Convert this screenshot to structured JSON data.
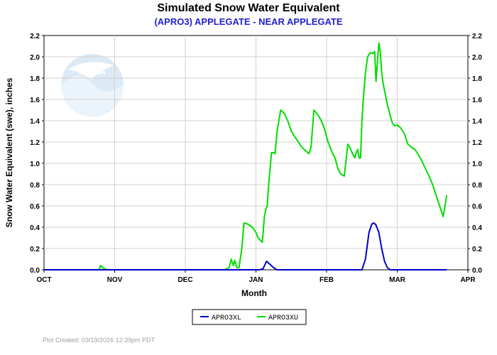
{
  "chart_data": {
    "type": "line",
    "title": "Simulated Snow Water Equivalent",
    "subtitle": "(APRO3) APPLEGATE - NEAR APPLEGATE",
    "xlabel": "Month",
    "ylabel": "Snow Water Equivalent (swe),  inches",
    "ylim": [
      0,
      2.2
    ],
    "xlim": [
      0,
      6
    ],
    "x_ticks": [
      {
        "x": 0,
        "label": "OCT"
      },
      {
        "x": 1,
        "label": "NOV"
      },
      {
        "x": 2,
        "label": "DEC"
      },
      {
        "x": 3,
        "label": "JAN"
      },
      {
        "x": 4,
        "label": "FEB"
      },
      {
        "x": 5,
        "label": "MAR"
      },
      {
        "x": 6,
        "label": "APR"
      }
    ],
    "y_ticks": [
      "0.0",
      "0.2",
      "0.4",
      "0.6",
      "0.8",
      "1.0",
      "1.2",
      "1.4",
      "1.6",
      "1.8",
      "2.0",
      "2.2"
    ],
    "grid": true,
    "legend_position": "bottom-center",
    "series": [
      {
        "name": "APRO3XL",
        "color": "#0000cc",
        "x": [
          0,
          3.05,
          3.1,
          3.15,
          3.2,
          3.25,
          3.3,
          3.5,
          4.0,
          4.5,
          4.55,
          4.6,
          4.64,
          4.67,
          4.7,
          4.74,
          4.78,
          4.82,
          4.86,
          4.9,
          4.95,
          5.0,
          5.5,
          5.7
        ],
        "y": [
          0,
          0,
          0.01,
          0.08,
          0.05,
          0.02,
          0,
          0,
          0,
          0,
          0.1,
          0.35,
          0.43,
          0.44,
          0.42,
          0.35,
          0.2,
          0.08,
          0.02,
          0,
          0,
          0,
          0,
          0
        ]
      },
      {
        "name": "APRO3XU",
        "color": "#00dd00",
        "x": [
          0,
          0.78,
          0.8,
          0.83,
          0.86,
          0.9,
          1.0,
          2.0,
          2.55,
          2.62,
          2.65,
          2.68,
          2.7,
          2.73,
          2.76,
          2.8,
          2.83,
          2.88,
          2.95,
          3.0,
          3.03,
          3.06,
          3.09,
          3.12,
          3.14,
          3.16,
          3.18,
          3.22,
          3.25,
          3.27,
          3.3,
          3.35,
          3.4,
          3.45,
          3.5,
          3.55,
          3.6,
          3.65,
          3.7,
          3.75,
          3.78,
          3.82,
          3.86,
          3.9,
          3.94,
          3.98,
          4.02,
          4.05,
          4.08,
          4.12,
          4.16,
          4.2,
          4.25,
          4.3,
          4.33,
          4.36,
          4.4,
          4.42,
          4.44,
          4.46,
          4.48,
          4.5,
          4.52,
          4.55,
          4.58,
          4.62,
          4.65,
          4.68,
          4.7,
          4.72,
          4.74,
          4.76,
          4.78,
          4.8,
          4.83,
          4.86,
          4.9,
          4.93,
          4.96,
          5.0,
          5.05,
          5.1,
          5.15,
          5.2,
          5.25,
          5.3,
          5.35,
          5.4,
          5.45,
          5.5,
          5.55,
          5.6,
          5.65,
          5.7
        ],
        "y": [
          0,
          0,
          0.04,
          0.02,
          0.01,
          0,
          0,
          0,
          0,
          0.02,
          0.1,
          0.04,
          0.09,
          0.02,
          0.02,
          0.2,
          0.44,
          0.43,
          0.4,
          0.35,
          0.3,
          0.28,
          0.26,
          0.5,
          0.57,
          0.6,
          0.8,
          1.1,
          1.1,
          1.09,
          1.3,
          1.5,
          1.47,
          1.4,
          1.3,
          1.25,
          1.2,
          1.15,
          1.12,
          1.09,
          1.15,
          1.5,
          1.47,
          1.43,
          1.38,
          1.3,
          1.2,
          1.15,
          1.1,
          1.05,
          0.95,
          0.9,
          0.88,
          1.18,
          1.15,
          1.1,
          1.05,
          1.1,
          1.13,
          1.05,
          1.05,
          1.4,
          1.6,
          1.85,
          2.0,
          2.04,
          2.03,
          2.05,
          1.77,
          1.95,
          2.13,
          2.05,
          1.85,
          1.75,
          1.65,
          1.55,
          1.45,
          1.38,
          1.35,
          1.36,
          1.33,
          1.28,
          1.18,
          1.15,
          1.13,
          1.08,
          1.02,
          0.95,
          0.88,
          0.8,
          0.7,
          0.6,
          0.5,
          0.7
        ]
      }
    ],
    "footer": "Plot Created: 03/19/2026 12:39pm PDT",
    "logo_text": "NOAA"
  }
}
